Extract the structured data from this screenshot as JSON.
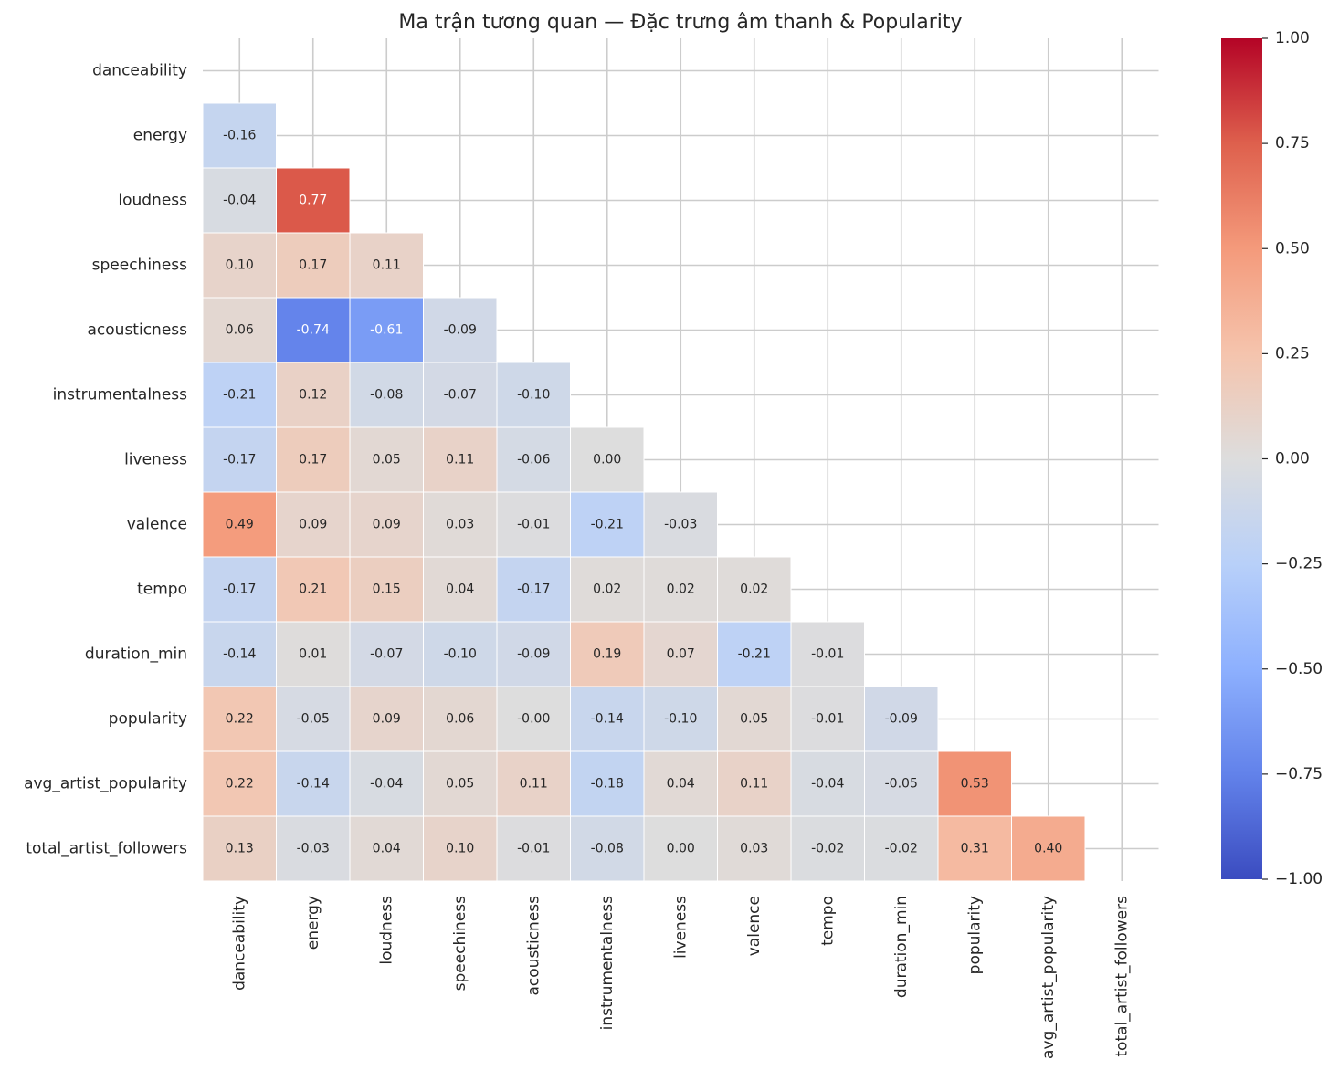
{
  "chart_data": {
    "type": "heatmap",
    "title": "Ma trận tương quan — Đặc trưng âm thanh & Popularity",
    "variables": [
      "danceability",
      "energy",
      "loudness",
      "speechiness",
      "acousticness",
      "instrumentalness",
      "liveness",
      "valence",
      "tempo",
      "duration_min",
      "popularity",
      "avg_artist_popularity",
      "total_artist_followers"
    ],
    "mask": "upper-triangle-including-diagonal",
    "values": [
      [],
      [
        "-0.16"
      ],
      [
        "-0.04",
        "0.77"
      ],
      [
        "0.10",
        "0.17",
        "0.11"
      ],
      [
        "0.06",
        "-0.74",
        "-0.61",
        "-0.09"
      ],
      [
        "-0.21",
        "0.12",
        "-0.08",
        "-0.07",
        "-0.10"
      ],
      [
        "-0.17",
        "0.17",
        "0.05",
        "0.11",
        "-0.06",
        "0.00"
      ],
      [
        "0.49",
        "0.09",
        "0.09",
        "0.03",
        "-0.01",
        "-0.21",
        "-0.03"
      ],
      [
        "-0.17",
        "0.21",
        "0.15",
        "0.04",
        "-0.17",
        "0.02",
        "0.02",
        "0.02"
      ],
      [
        "-0.14",
        "0.01",
        "-0.07",
        "-0.10",
        "-0.09",
        "0.19",
        "0.07",
        "-0.21",
        "-0.01"
      ],
      [
        "0.22",
        "-0.05",
        "0.09",
        "0.06",
        "-0.00",
        "-0.14",
        "-0.10",
        "0.05",
        "-0.01",
        "-0.09"
      ],
      [
        "0.22",
        "-0.14",
        "-0.04",
        "0.05",
        "0.11",
        "-0.18",
        "0.04",
        "0.11",
        "-0.04",
        "-0.05",
        "0.53"
      ],
      [
        "0.13",
        "-0.03",
        "0.04",
        "0.10",
        "-0.01",
        "-0.08",
        "0.00",
        "0.03",
        "-0.02",
        "-0.02",
        "0.31",
        "0.40"
      ]
    ],
    "colormap": "coolwarm",
    "colorbar": {
      "range": [
        -1,
        1
      ],
      "ticks": [
        "1.00",
        "0.75",
        "0.50",
        "0.25",
        "0.00",
        "−0.25",
        "−0.50",
        "−0.75",
        "−1.00"
      ],
      "tick_values": [
        1,
        0.75,
        0.5,
        0.25,
        0,
        -0.25,
        -0.5,
        -0.75,
        -1
      ]
    },
    "grid": true
  }
}
